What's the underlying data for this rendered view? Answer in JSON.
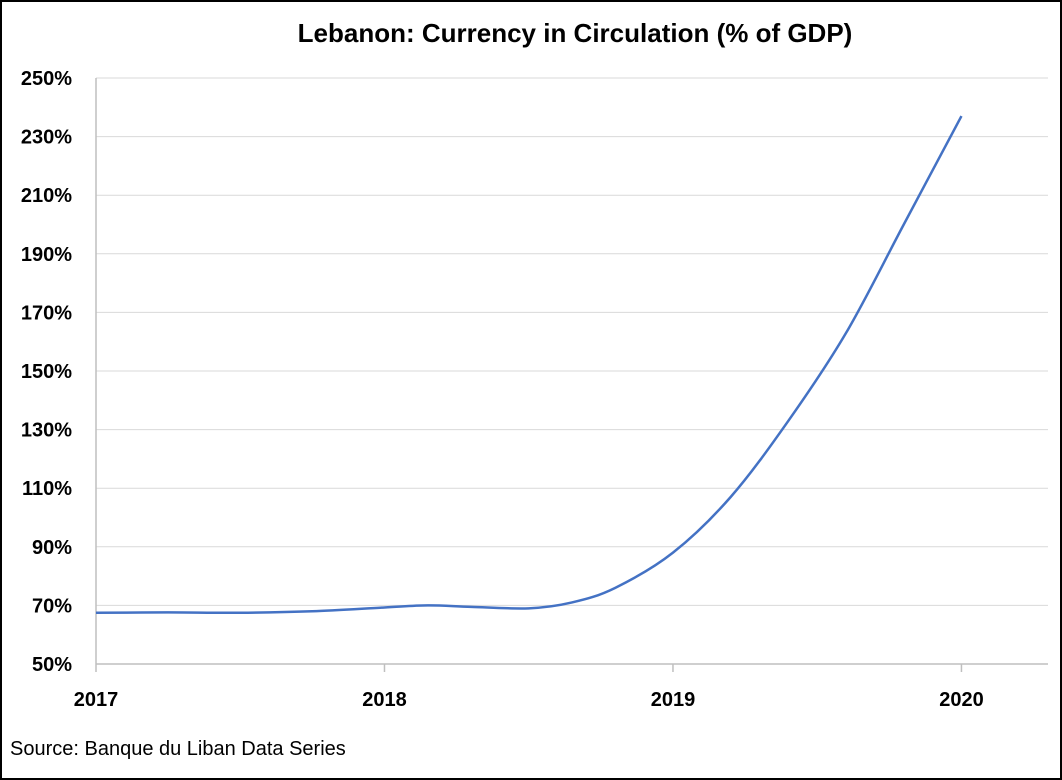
{
  "chart_data": {
    "type": "line",
    "title": "Lebanon: Currency in Circulation (% of GDP)",
    "source": "Source: Banque du Liban Data Series",
    "xlabel": "",
    "ylabel": "",
    "x_ticks": [
      "2017",
      "2018",
      "2019",
      "2020"
    ],
    "y_ticks": [
      "50%",
      "70%",
      "90%",
      "110%",
      "130%",
      "150%",
      "170%",
      "190%",
      "210%",
      "230%",
      "250%"
    ],
    "ylim": [
      50,
      250
    ],
    "xlim": [
      2017,
      2020.3
    ],
    "grid": true,
    "line_color": "#4472C4",
    "series": [
      {
        "x": [
          2017.0,
          2017.25,
          2017.5,
          2017.75,
          2018.0,
          2018.15,
          2018.3,
          2018.5,
          2018.65,
          2018.8,
          2019.0,
          2019.2,
          2019.4,
          2019.6,
          2019.8,
          2020.0
        ],
        "values": [
          67.5,
          67.6,
          67.5,
          68.0,
          69.3,
          70.0,
          69.5,
          69.0,
          71.0,
          76.0,
          88.0,
          107.0,
          133.0,
          163.0,
          200.0,
          237.0
        ]
      }
    ]
  }
}
